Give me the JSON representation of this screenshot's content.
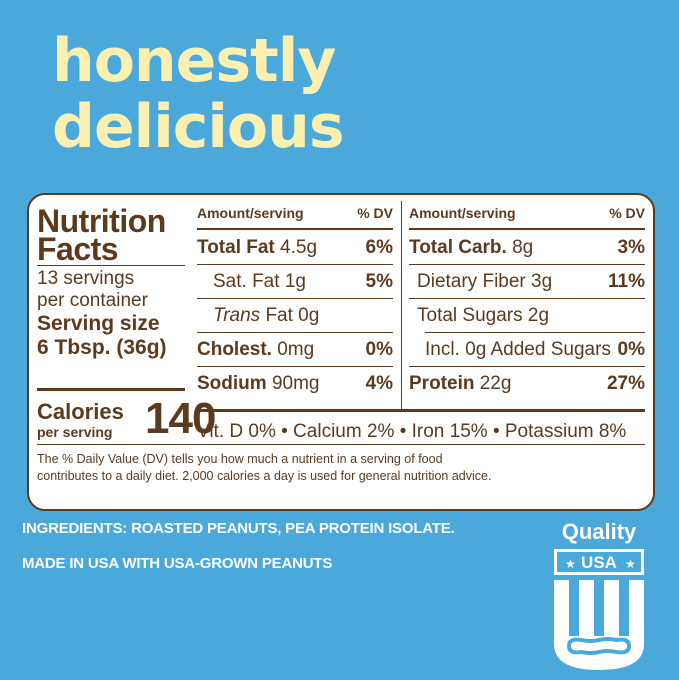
{
  "headline": {
    "line1": "honestly",
    "line2": "delicious"
  },
  "nutrition": {
    "title_line1": "Nutrition",
    "title_line2": "Facts",
    "servings_line1": "13 servings",
    "servings_line2": "per container",
    "serving_size_label": "Serving size",
    "serving_size_value": "6 Tbsp. (36g)",
    "calories_label": "Calories",
    "calories_sub": "per serving",
    "calories_value": "140",
    "col_header_amount": "Amount/serving",
    "col_header_dv": "% DV",
    "left_rows": [
      {
        "name": "Total Fat",
        "amount": "4.5g",
        "dv": "6%"
      },
      {
        "name": "Sat. Fat",
        "amount": "1g",
        "dv": "5%"
      },
      {
        "name": "Trans",
        "amount": "Fat 0g",
        "dv": ""
      },
      {
        "name": "Cholest.",
        "amount": "0mg",
        "dv": "0%"
      },
      {
        "name": "Sodium",
        "amount": "90mg",
        "dv": "4%"
      }
    ],
    "right_rows": [
      {
        "name": "Total Carb.",
        "amount": "8g",
        "dv": "3%"
      },
      {
        "name": "Dietary Fiber",
        "amount": "3g",
        "dv": "11%"
      },
      {
        "name": "Total Sugars",
        "amount": "2g",
        "dv": ""
      },
      {
        "name": "Incl. 0g Added Sugars",
        "amount": "",
        "dv": "0%"
      },
      {
        "name": "Protein",
        "amount": "22g",
        "dv": "27%"
      }
    ],
    "vitamins": "Vit. D 0% • Calcium 2% • Iron 15% • Potassium 8%",
    "footnote": "The % Daily Value (DV) tells you how much a nutrient in a serving of food contributes to a daily diet. 2,000 calories a day is used for general nutrition advice."
  },
  "ingredients": "INGREDIENTS: ROASTED PEANUTS, PEA PROTEIN ISOLATE.",
  "made_in": "MADE IN USA WITH USA-GROWN PEANUTS",
  "badge": {
    "title": "Quality",
    "banner": "USA"
  },
  "colors": {
    "background": "#4aa8db",
    "headline": "#fbf0b0",
    "label_text": "#5c3a1e"
  }
}
